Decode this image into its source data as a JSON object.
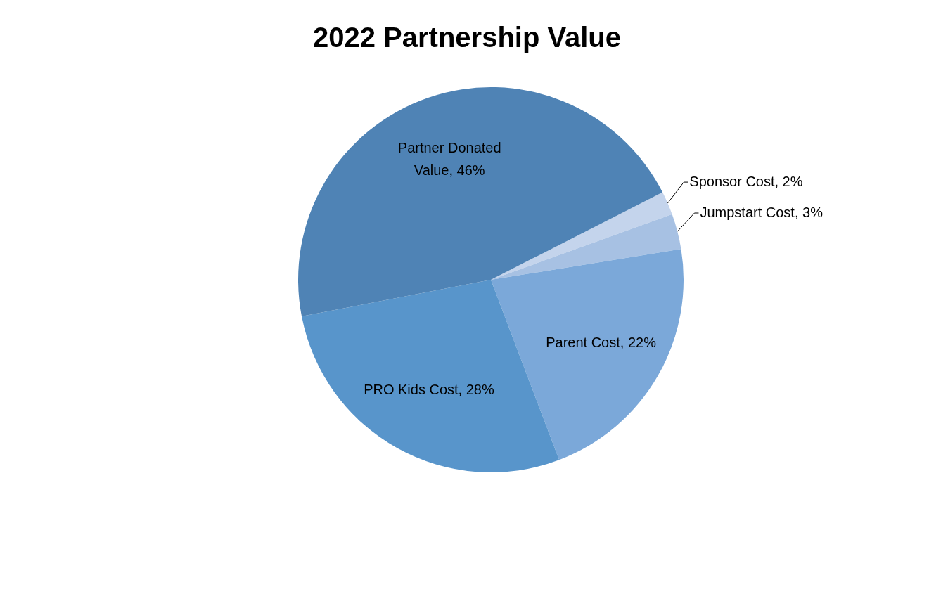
{
  "chart_data": {
    "type": "pie",
    "title": "2022 Partnership Value",
    "categories": [
      "Sponsor Cost",
      "Jumpstart Cost",
      "Parent Cost",
      "PRO Kids Cost",
      "Partner Donated Value"
    ],
    "values": [
      2,
      3,
      22,
      28,
      46
    ],
    "value_labels": [
      "2%",
      "3%",
      "22%",
      "28%",
      "46%"
    ],
    "colors": [
      "#c4d4ec",
      "#a7c1e3",
      "#7ba8d9",
      "#5895cb",
      "#4f83b5"
    ],
    "legend": false
  }
}
